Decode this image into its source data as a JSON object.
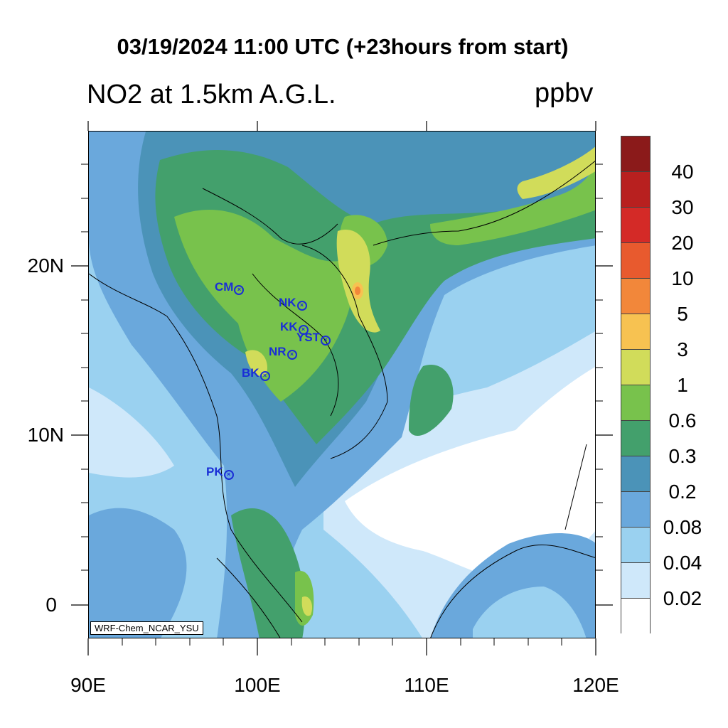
{
  "title": "03/19/2024 11:00 UTC (+23hours from start)",
  "subtitle_left": "NO2 at 1.5km A.G.L.",
  "subtitle_right": "ppbv",
  "credit": "WRF-Chem_NCAR_YSU",
  "map": {
    "lon_range": [
      90,
      120
    ],
    "lat_range": [
      -2,
      28
    ],
    "x_tick_labels": [
      "90E",
      "100E",
      "110E",
      "120E"
    ],
    "y_tick_labels": [
      "20N",
      "10N",
      "0"
    ],
    "stations": [
      {
        "name": "CM"
      },
      {
        "name": "NK"
      },
      {
        "name": "KK"
      },
      {
        "name": "YST"
      },
      {
        "name": "NR"
      },
      {
        "name": "BK"
      },
      {
        "name": "PK"
      }
    ]
  },
  "colorbar": {
    "labels": [
      "40",
      "30",
      "20",
      "10",
      "5",
      "3",
      "1",
      "0.6",
      "0.3",
      "0.2",
      "0.08",
      "0.04",
      "0.02"
    ],
    "colors": [
      "#8b1a1a",
      "#b8201f",
      "#d42a27",
      "#e85a2e",
      "#f2873a",
      "#f7c251",
      "#d1dc5a",
      "#78c24c",
      "#43a06c",
      "#4b93b8",
      "#6aa8dc",
      "#9ad1f0",
      "#cfe8fa",
      "#ffffff"
    ]
  }
}
